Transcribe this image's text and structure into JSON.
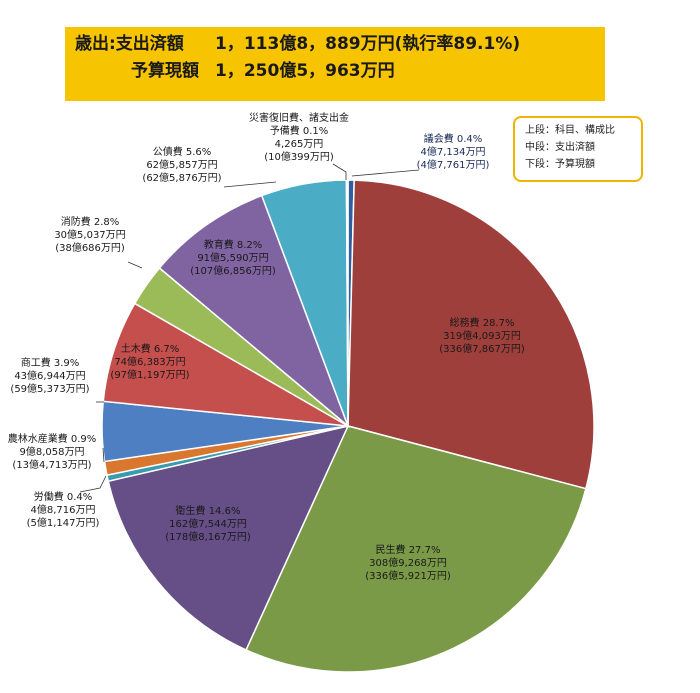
{
  "header": {
    "line1_label": "歳出:支出済額",
    "line1_value": "1，113億8，889万円(執行率89.1%)",
    "line2_label": "予算現額",
    "line2_value": "1，250億5，963万円"
  },
  "legend": {
    "top": "上段：科目、構成比",
    "middle": "中段：支出済額",
    "bottom": "下段：予算現額"
  },
  "chart_data": {
    "type": "pie",
    "title": "歳出:支出済額 1，113億8，889万円(執行率89.1%) 予算現額 1，250億5，963万円",
    "slices": [
      {
        "name": "議会費",
        "percent": 0.4,
        "spent": "4億7,134万円",
        "budget": "(4億7,761万円)",
        "color": "#2e5f9e"
      },
      {
        "name": "総務費",
        "percent": 28.7,
        "spent": "319億4,093万円",
        "budget": "(336億7,867万円)",
        "color": "#9e3f3c"
      },
      {
        "name": "民生費",
        "percent": 27.7,
        "spent": "308億9,268万円",
        "budget": "(336億5,921万円)",
        "color": "#7a9a47"
      },
      {
        "name": "衛生費",
        "percent": 14.6,
        "spent": "162億7,544万円",
        "budget": "(178億8,167万円)",
        "color": "#664e86"
      },
      {
        "name": "労働費",
        "percent": 0.4,
        "spent": "4億8,716万円",
        "budget": "(5億1,147万円)",
        "color": "#3a9aaf"
      },
      {
        "name": "農林水産業費",
        "percent": 0.9,
        "spent": "9億8,058万円",
        "budget": "(13億4,713万円)",
        "color": "#d9772e"
      },
      {
        "name": "商工費",
        "percent": 3.9,
        "spent": "43億6,944万円",
        "budget": "(59億5,373万円)",
        "color": "#4d7fc2"
      },
      {
        "name": "土木費",
        "percent": 6.7,
        "spent": "74億6,383万円",
        "budget": "(97億1,197万円)",
        "color": "#c44f4d"
      },
      {
        "name": "消防費",
        "percent": 2.8,
        "spent": "30億5,037万円",
        "budget": "(38億686万円)",
        "color": "#9bbb59"
      },
      {
        "name": "教育費",
        "percent": 8.2,
        "spent": "91億5,590万円",
        "budget": "(107億6,856万円)",
        "color": "#8064a2"
      },
      {
        "name": "公債費",
        "percent": 5.6,
        "spent": "62億5,857万円",
        "budget": "(62億5,876万円)",
        "color": "#4bacc6"
      },
      {
        "name": "災害復旧費、諸支出金 予備費",
        "percent": 0.1,
        "spent": "4,265万円",
        "budget": "(10億399万円)",
        "color": "#f79646"
      }
    ]
  }
}
